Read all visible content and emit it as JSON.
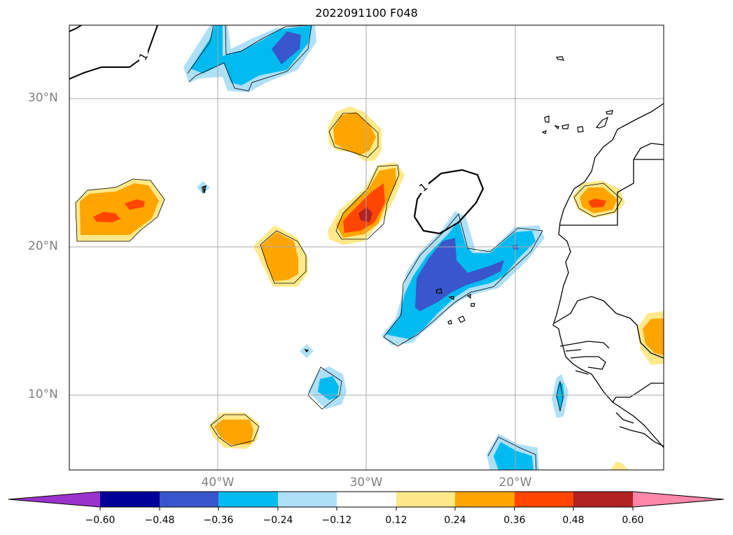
{
  "title": "2022091100 F048",
  "axes": {
    "lat_labels": [
      "30°N",
      "20°N",
      "10°N"
    ],
    "lon_labels": [
      "40°W",
      "30°W",
      "20°W"
    ]
  },
  "contour_label": "1",
  "colorbar": {
    "ticks": [
      "−0.60",
      "−0.48",
      "−0.36",
      "−0.24",
      "−0.12",
      "0.12",
      "0.24",
      "0.36",
      "0.48",
      "0.60"
    ],
    "colors": [
      "#9933cc",
      "#000099",
      "#3a56cc",
      "#00bbf0",
      "#aee0f8",
      "#ffffff",
      "#ffe98a",
      "#ffa500",
      "#ff4500",
      "#b22222",
      "#ff88aa"
    ]
  }
}
